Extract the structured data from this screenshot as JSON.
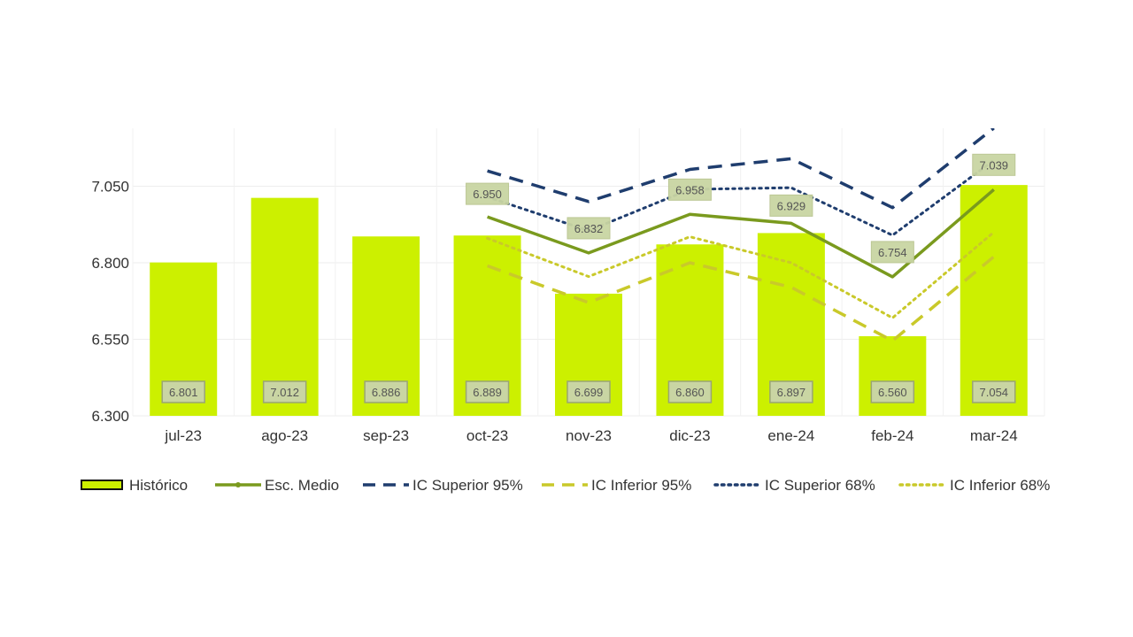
{
  "chart_data": {
    "type": "bar",
    "categories": [
      "jul-23",
      "ago-23",
      "sep-23",
      "oct-23",
      "nov-23",
      "dic-23",
      "ene-24",
      "feb-24",
      "mar-24"
    ],
    "ylim": [
      6.3,
      7.25
    ],
    "yticks": [
      6.3,
      6.55,
      6.8,
      7.05
    ],
    "ytick_labels": [
      "6.300",
      "6.550",
      "6.800",
      "7.050"
    ],
    "grid": true,
    "legend_position": "bottom",
    "series": [
      {
        "name": "Histórico",
        "kind": "bar",
        "color": "#ccf000",
        "values": [
          6.801,
          7.012,
          6.886,
          6.889,
          6.699,
          6.86,
          6.897,
          6.56,
          7.054
        ],
        "labels": [
          "6.801",
          "7.012",
          "6.886",
          "6.889",
          "6.699",
          "6.860",
          "6.897",
          "6.560",
          "7.054"
        ]
      },
      {
        "name": "Esc. Medio",
        "kind": "line",
        "style": "solid",
        "color": "#7a9a1e",
        "x": [
          "oct-23",
          "nov-23",
          "dic-23",
          "ene-24",
          "feb-24",
          "mar-24"
        ],
        "values": [
          6.95,
          6.832,
          6.958,
          6.929,
          6.754,
          7.039
        ],
        "labels": [
          "6.950",
          "6.832",
          "6.958",
          "6.929",
          "6.754",
          "7.039"
        ]
      },
      {
        "name": "IC Superior 95%",
        "kind": "line",
        "style": "dashed",
        "color": "#1f3d6e",
        "x": [
          "oct-23",
          "nov-23",
          "dic-23",
          "ene-24",
          "feb-24",
          "mar-24"
        ],
        "values": [
          7.1,
          7.0,
          7.105,
          7.14,
          6.98,
          7.24
        ]
      },
      {
        "name": "IC Inferior 95%",
        "kind": "line",
        "style": "dashed",
        "color": "#c9c92a",
        "x": [
          "oct-23",
          "nov-23",
          "dic-23",
          "ene-24",
          "feb-24",
          "mar-24"
        ],
        "values": [
          6.79,
          6.67,
          6.8,
          6.72,
          6.545,
          6.82
        ]
      },
      {
        "name": "IC Superior 68%",
        "kind": "line",
        "style": "dotted",
        "color": "#1f3d6e",
        "x": [
          "oct-23",
          "nov-23",
          "dic-23",
          "ene-24",
          "feb-24",
          "mar-24"
        ],
        "values": [
          7.015,
          6.905,
          7.04,
          7.045,
          6.89,
          7.135
        ]
      },
      {
        "name": "IC Inferior 68%",
        "kind": "line",
        "style": "dotted",
        "color": "#c9c92a",
        "x": [
          "oct-23",
          "nov-23",
          "dic-23",
          "ene-24",
          "feb-24",
          "mar-24"
        ],
        "values": [
          6.88,
          6.755,
          6.885,
          6.8,
          6.62,
          6.9
        ]
      }
    ]
  }
}
